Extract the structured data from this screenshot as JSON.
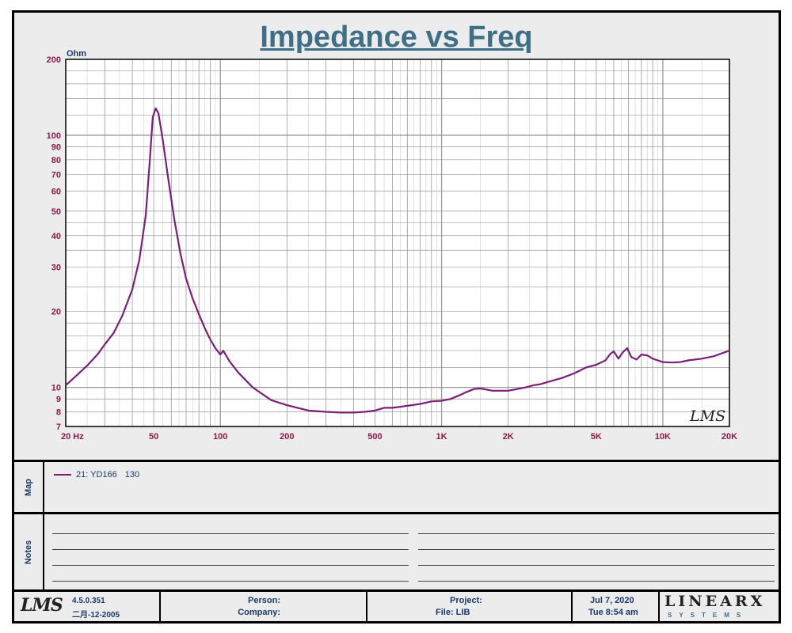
{
  "title": "Impedance vs Freq",
  "chart_data": {
    "type": "line",
    "title": "Impedance vs Freq",
    "xscale": "log",
    "yscale": "log",
    "xlim": [
      20,
      20000
    ],
    "ylim": [
      7,
      200
    ],
    "ylabel": "Ohm",
    "x_ticks": [
      {
        "v": 20,
        "label": "20  Hz"
      },
      {
        "v": 50,
        "label": "50"
      },
      {
        "v": 100,
        "label": "100"
      },
      {
        "v": 200,
        "label": "200"
      },
      {
        "v": 500,
        "label": "500"
      },
      {
        "v": 1000,
        "label": "1K"
      },
      {
        "v": 2000,
        "label": "2K"
      },
      {
        "v": 5000,
        "label": "5K"
      },
      {
        "v": 10000,
        "label": "10K"
      },
      {
        "v": 20000,
        "label": "20K"
      }
    ],
    "y_ticks": [
      {
        "v": 200,
        "label": "200"
      },
      {
        "v": 100,
        "label": "100"
      },
      {
        "v": 90,
        "label": "90"
      },
      {
        "v": 80,
        "label": "80"
      },
      {
        "v": 70,
        "label": "70"
      },
      {
        "v": 60,
        "label": "60"
      },
      {
        "v": 50,
        "label": "50"
      },
      {
        "v": 40,
        "label": "40"
      },
      {
        "v": 30,
        "label": "30"
      },
      {
        "v": 20,
        "label": "20"
      },
      {
        "v": 10,
        "label": "10"
      },
      {
        "v": 9,
        "label": "9"
      },
      {
        "v": 8,
        "label": "8"
      },
      {
        "v": 7,
        "label": "7"
      }
    ],
    "grid": true,
    "series": [
      {
        "name": "21: YD166   130",
        "color": "#7b1f7b",
        "x": [
          20,
          22,
          25,
          28,
          30,
          33,
          36,
          40,
          43,
          46,
          48,
          49.5,
          51,
          52.5,
          55,
          58,
          62,
          66,
          70,
          75,
          80,
          85,
          90,
          95,
          100,
          103,
          110,
          120,
          140,
          170,
          200,
          250,
          300,
          350,
          400,
          450,
          500,
          550,
          600,
          700,
          800,
          900,
          1000,
          1100,
          1200,
          1300,
          1400,
          1500,
          1600,
          1700,
          1800,
          2000,
          2200,
          2400,
          2600,
          2800,
          3000,
          3500,
          4000,
          4500,
          5000,
          5500,
          5800,
          6000,
          6300,
          6600,
          6900,
          7200,
          7600,
          8000,
          8500,
          9000,
          10000,
          11000,
          12000,
          13000,
          15000,
          17000,
          20000
        ],
        "values": [
          10.2,
          11.0,
          12.2,
          13.6,
          14.8,
          16.5,
          19.2,
          24.5,
          32,
          48,
          80,
          118,
          128,
          122,
          95,
          68,
          46,
          34,
          27,
          22.5,
          19.5,
          17.2,
          15.5,
          14.3,
          13.5,
          14.0,
          12.7,
          11.5,
          10.0,
          8.9,
          8.5,
          8.1,
          8.0,
          7.95,
          7.95,
          8.0,
          8.1,
          8.3,
          8.3,
          8.45,
          8.6,
          8.8,
          8.85,
          9.0,
          9.3,
          9.6,
          9.85,
          9.9,
          9.8,
          9.7,
          9.7,
          9.7,
          9.85,
          10.0,
          10.2,
          10.3,
          10.5,
          10.9,
          11.4,
          12.0,
          12.3,
          12.8,
          13.6,
          13.9,
          13.0,
          13.8,
          14.3,
          13.2,
          12.9,
          13.5,
          13.4,
          13.0,
          12.6,
          12.55,
          12.6,
          12.8,
          13.0,
          13.3,
          14.0
        ]
      }
    ]
  },
  "watermark": "LMS",
  "map": {
    "label": "Map",
    "entry_name": "21: YD166",
    "entry_value": "130"
  },
  "notes": {
    "label": "Notes"
  },
  "footer": {
    "logo": "LMS",
    "version": "4.5.0.351",
    "date_cn": "二月-12-2005",
    "person_label": "Person:",
    "company_label": "Company:",
    "project_label": "Project:",
    "file_label": "File: LIB",
    "date": "Jul  7, 2020",
    "time": "Tue  8:54 am",
    "brand": "LINEARX",
    "brand_sub": "SYSTEMS"
  },
  "colors": {
    "title": "#3f6f86",
    "curve": "#7b1f7b",
    "tick_labels": "#8b1a4a",
    "grid": "#9a9a9a"
  }
}
